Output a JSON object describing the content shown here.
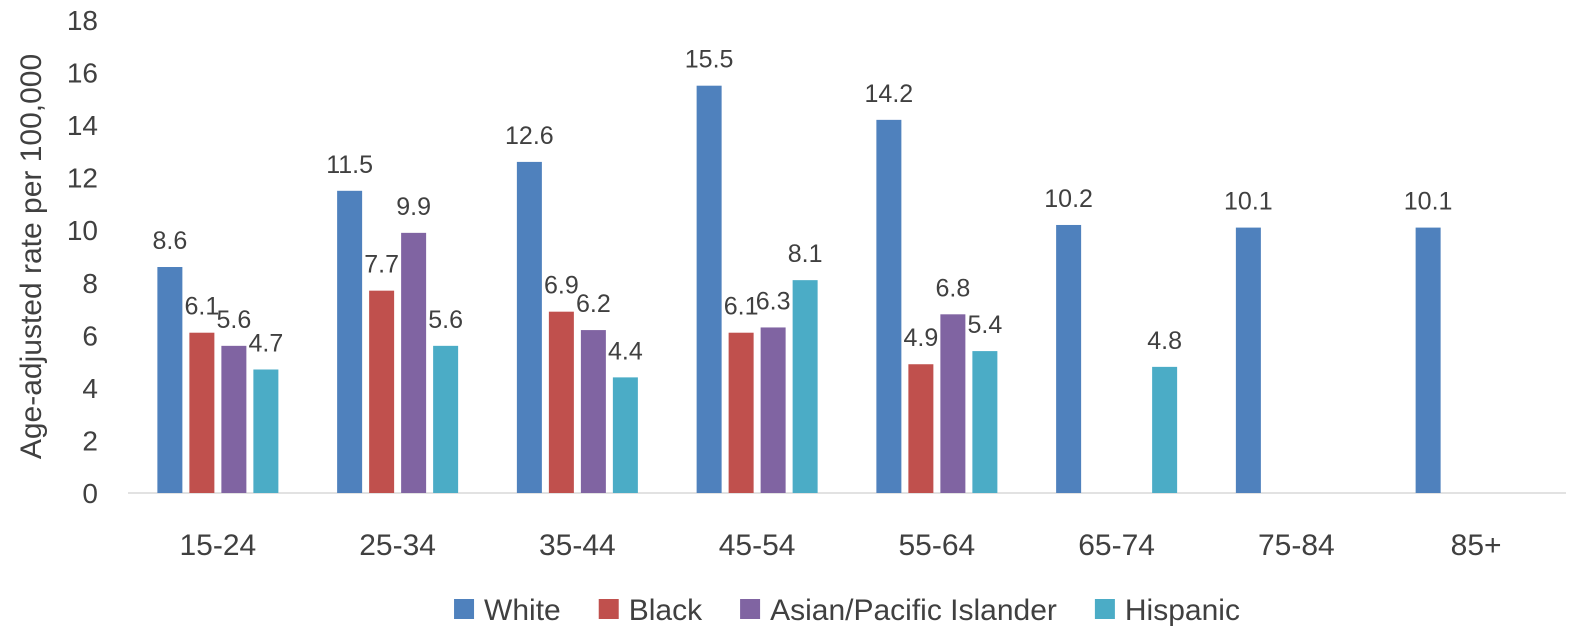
{
  "chart_data": {
    "type": "bar",
    "title": "",
    "xlabel": "",
    "ylabel": "Age-adjusted rate per 100,000",
    "ylim": [
      0,
      18
    ],
    "yticks": [
      0,
      2,
      4,
      6,
      8,
      10,
      12,
      14,
      16,
      18
    ],
    "grid": false,
    "legend_position": "bottom",
    "categories": [
      "15-24",
      "25-34",
      "35-44",
      "45-54",
      "55-64",
      "65-74",
      "75-84",
      "85+"
    ],
    "series": [
      {
        "name": "White",
        "color": "#4F81BD",
        "values": [
          8.6,
          11.5,
          12.6,
          15.5,
          14.2,
          10.2,
          10.1,
          10.1
        ]
      },
      {
        "name": "Black",
        "color": "#C0504D",
        "values": [
          6.1,
          7.7,
          6.9,
          6.1,
          4.9,
          null,
          null,
          null
        ]
      },
      {
        "name": "Asian/Pacific Islander",
        "color": "#8064A2",
        "values": [
          5.6,
          9.9,
          6.2,
          6.3,
          6.8,
          null,
          null,
          null
        ]
      },
      {
        "name": "Hispanic",
        "color": "#4BACC6",
        "values": [
          4.7,
          5.6,
          4.4,
          8.1,
          5.4,
          4.8,
          null,
          null
        ]
      }
    ]
  }
}
